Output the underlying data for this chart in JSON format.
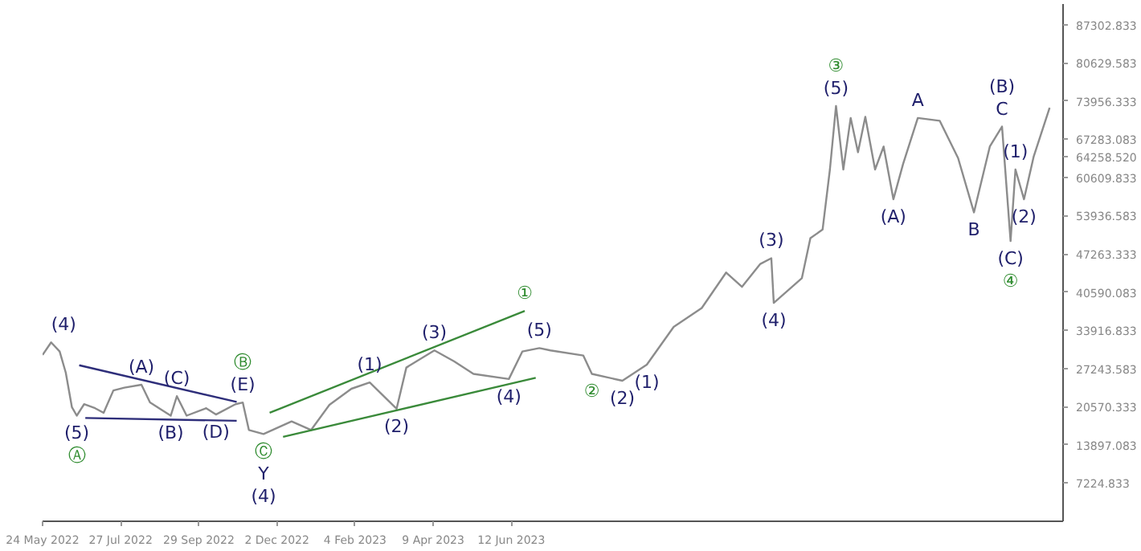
{
  "chart_data": {
    "type": "line",
    "xlim": [
      "2022-05-24",
      "2024-09-06"
    ],
    "ylim": [
      551,
      90900
    ],
    "xticks": [
      {
        "value": "2022-05-24",
        "label": "24 May 2022"
      },
      {
        "value": "2022-07-27",
        "label": "27 Jul 2022"
      },
      {
        "value": "2022-09-29",
        "label": "29 Sep 2022"
      },
      {
        "value": "2022-12-02",
        "label": "2 Dec 2022"
      },
      {
        "value": "2023-02-04",
        "label": "4 Feb 2023"
      },
      {
        "value": "2023-04-09",
        "label": "9 Apr 2023"
      },
      {
        "value": "2023-06-12",
        "label": "12 Jun 2023"
      }
    ],
    "yticks": [
      {
        "value": 7224.833,
        "label": "7224.833"
      },
      {
        "value": 13897.083,
        "label": "13897.083"
      },
      {
        "value": 20570.333,
        "label": "20570.333"
      },
      {
        "value": 27243.583,
        "label": "27243.583"
      },
      {
        "value": 33916.833,
        "label": "33916.833"
      },
      {
        "value": 40590.083,
        "label": "40590.083"
      },
      {
        "value": 47263.333,
        "label": "47263.333"
      },
      {
        "value": 53936.583,
        "label": "53936.583"
      },
      {
        "value": 60609.833,
        "label": "60609.833"
      },
      {
        "value": 64258.52,
        "label": "64258.520"
      },
      {
        "value": 67283.083,
        "label": "67283.083"
      },
      {
        "value": 73956.333,
        "label": "73956.333"
      },
      {
        "value": 80629.583,
        "label": "80629.583"
      },
      {
        "value": 87302.833,
        "label": "87302.833"
      }
    ],
    "grid": false,
    "series": [
      {
        "color": "#8c8c8c",
        "x": [
          "2022-05-24",
          "2022-05-31",
          "2022-06-07",
          "2022-06-12",
          "2022-06-17",
          "2022-06-21",
          "2022-06-27",
          "2022-07-06",
          "2022-07-13",
          "2022-07-21",
          "2022-07-30",
          "2022-08-13",
          "2022-08-20",
          "2022-09-06",
          "2022-09-11",
          "2022-09-19",
          "2022-10-05",
          "2022-10-13",
          "2022-10-29",
          "2022-11-04",
          "2022-11-09",
          "2022-11-21",
          "2022-12-14",
          "2022-12-30",
          "2023-01-14",
          "2023-02-01",
          "2023-02-16",
          "2023-03-10",
          "2023-03-18",
          "2023-04-10",
          "2023-04-26",
          "2023-05-12",
          "2023-06-10",
          "2023-06-21",
          "2023-07-05",
          "2023-07-14",
          "2023-08-10",
          "2023-08-17",
          "2023-09-11",
          "2023-10-01",
          "2023-10-23",
          "2023-11-15",
          "2023-12-05",
          "2023-12-18",
          "2024-01-02",
          "2024-01-11",
          "2024-01-13",
          "2024-02-05",
          "2024-02-12",
          "2024-02-22",
          "2024-02-28",
          "2024-03-04",
          "2024-03-10",
          "2024-03-16",
          "2024-03-22",
          "2024-03-28",
          "2024-04-05",
          "2024-04-12",
          "2024-04-20",
          "2024-04-28",
          "2024-05-10",
          "2024-05-28",
          "2024-06-12",
          "2024-06-25",
          "2024-07-08",
          "2024-07-18",
          "2024-07-25",
          "2024-07-29",
          "2024-08-05",
          "2024-08-13",
          "2024-08-26"
        ],
        "values": [
          29600,
          31800,
          30200,
          26500,
          20500,
          19000,
          21000,
          20300,
          19500,
          23400,
          23900,
          24400,
          21300,
          19000,
          22400,
          19000,
          20300,
          19200,
          21000,
          21300,
          16500,
          15800,
          18000,
          16500,
          20900,
          23700,
          24800,
          20200,
          27400,
          30400,
          28500,
          26300,
          25400,
          30200,
          30800,
          30400,
          29500,
          26300,
          25100,
          27900,
          34500,
          37800,
          44000,
          41500,
          45500,
          46500,
          38700,
          43000,
          50000,
          51500,
          62000,
          73100,
          62000,
          71000,
          65000,
          71200,
          62000,
          66000,
          56800,
          63000,
          71000,
          70500,
          64000,
          54500,
          66000,
          69500,
          49500,
          62000,
          56800,
          64300,
          72800
        ]
      },
      {
        "color": "#2e2e7a",
        "x": [
          "2022-06-23",
          "2022-10-30"
        ],
        "values": [
          27800,
          21400
        ]
      },
      {
        "color": "#2e2e7a",
        "x": [
          "2022-06-28",
          "2022-10-30"
        ],
        "values": [
          18600,
          18100
        ]
      },
      {
        "color": "#3a8a3a",
        "x": [
          "2022-11-26",
          "2023-06-23"
        ],
        "values": [
          19500,
          37300
        ]
      },
      {
        "color": "#3a8a3a",
        "x": [
          "2022-12-07",
          "2023-07-02"
        ],
        "values": [
          15300,
          25600
        ]
      }
    ],
    "annotations": [
      {
        "text": "(4)",
        "x": "2022-05-31",
        "y": 31800
      },
      {
        "text": "(5)",
        "x": "2022-06-21",
        "y": 19000
      },
      {
        "text": "Ⓐ",
        "x": "2022-06-21",
        "y": 19000
      },
      {
        "text": "(A)",
        "x": "2022-08-13",
        "y": 24400
      },
      {
        "text": "(C)",
        "x": "2022-09-11",
        "y": 22400
      },
      {
        "text": "(B)",
        "x": "2022-09-06",
        "y": 19000
      },
      {
        "text": "(D)",
        "x": "2022-10-13",
        "y": 19200
      },
      {
        "text": "(E)",
        "x": "2022-11-04",
        "y": 21300
      },
      {
        "text": "Ⓑ",
        "x": "2022-11-04",
        "y": 21300
      },
      {
        "text": "Ⓒ",
        "x": "2022-11-21",
        "y": 15800
      },
      {
        "text": "Y",
        "x": "2022-11-21",
        "y": 15800
      },
      {
        "text": "(4)",
        "x": "2022-11-21",
        "y": 15800
      },
      {
        "text": "(1)",
        "x": "2023-02-16",
        "y": 24800
      },
      {
        "text": "(2)",
        "x": "2023-03-10",
        "y": 20200
      },
      {
        "text": "(3)",
        "x": "2023-04-10",
        "y": 30400
      },
      {
        "text": "(4)",
        "x": "2023-06-10",
        "y": 25400
      },
      {
        "text": "(5)",
        "x": "2023-07-05",
        "y": 30800
      },
      {
        "text": "①",
        "x": "2023-06-23",
        "y": 37300
      },
      {
        "text": "(1)",
        "x": "2023-10-01",
        "y": 27900
      },
      {
        "text": "②",
        "x": "2023-08-17",
        "y": 26300
      },
      {
        "text": "(2)",
        "x": "2023-09-11",
        "y": 25100
      },
      {
        "text": "(3)",
        "x": "2024-01-11",
        "y": 46500
      },
      {
        "text": "(4)",
        "x": "2024-01-13",
        "y": 38700
      },
      {
        "text": "(5)",
        "x": "2024-03-04",
        "y": 73100
      },
      {
        "text": "③",
        "x": "2024-03-04",
        "y": 73100
      },
      {
        "text": "(A)",
        "x": "2024-04-20",
        "y": 56800
      },
      {
        "text": "A",
        "x": "2024-05-10",
        "y": 71000
      },
      {
        "text": "B",
        "x": "2024-06-25",
        "y": 54500
      },
      {
        "text": "C",
        "x": "2024-07-18",
        "y": 69500
      },
      {
        "text": "(B)",
        "x": "2024-07-18",
        "y": 69500
      },
      {
        "text": "(1)",
        "x": "2024-07-29",
        "y": 62000
      },
      {
        "text": "(2)",
        "x": "2024-08-05",
        "y": 56800
      },
      {
        "text": "(C)",
        "x": "2024-07-25",
        "y": 49500
      },
      {
        "text": "④",
        "x": "2024-07-25",
        "y": 49500
      }
    ]
  }
}
